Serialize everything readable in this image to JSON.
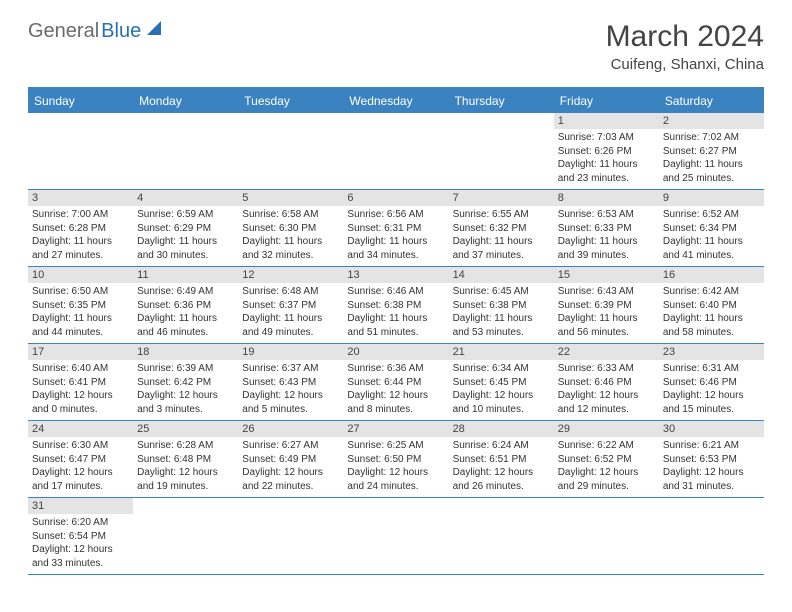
{
  "logo": {
    "part1": "General",
    "part2": "Blue"
  },
  "title": "March 2024",
  "location": "Cuifeng, Shanxi, China",
  "colors": {
    "header_bg": "#3b83c0",
    "header_text": "#ffffff",
    "stripe": "#e4e4e4",
    "border": "#3b83c0",
    "text": "#333333",
    "logo_gray": "#6b6b6b",
    "logo_blue": "#2a6fb5"
  },
  "day_labels": [
    "Sunday",
    "Monday",
    "Tuesday",
    "Wednesday",
    "Thursday",
    "Friday",
    "Saturday"
  ],
  "weeks": [
    {
      "nums": [
        "",
        "",
        "",
        "",
        "",
        "1",
        "2"
      ],
      "cells": [
        null,
        null,
        null,
        null,
        null,
        {
          "sunrise": "7:03 AM",
          "sunset": "6:26 PM",
          "daylight": "11 hours and 23 minutes."
        },
        {
          "sunrise": "7:02 AM",
          "sunset": "6:27 PM",
          "daylight": "11 hours and 25 minutes."
        }
      ]
    },
    {
      "nums": [
        "3",
        "4",
        "5",
        "6",
        "7",
        "8",
        "9"
      ],
      "cells": [
        {
          "sunrise": "7:00 AM",
          "sunset": "6:28 PM",
          "daylight": "11 hours and 27 minutes."
        },
        {
          "sunrise": "6:59 AM",
          "sunset": "6:29 PM",
          "daylight": "11 hours and 30 minutes."
        },
        {
          "sunrise": "6:58 AM",
          "sunset": "6:30 PM",
          "daylight": "11 hours and 32 minutes."
        },
        {
          "sunrise": "6:56 AM",
          "sunset": "6:31 PM",
          "daylight": "11 hours and 34 minutes."
        },
        {
          "sunrise": "6:55 AM",
          "sunset": "6:32 PM",
          "daylight": "11 hours and 37 minutes."
        },
        {
          "sunrise": "6:53 AM",
          "sunset": "6:33 PM",
          "daylight": "11 hours and 39 minutes."
        },
        {
          "sunrise": "6:52 AM",
          "sunset": "6:34 PM",
          "daylight": "11 hours and 41 minutes."
        }
      ]
    },
    {
      "nums": [
        "10",
        "11",
        "12",
        "13",
        "14",
        "15",
        "16"
      ],
      "cells": [
        {
          "sunrise": "6:50 AM",
          "sunset": "6:35 PM",
          "daylight": "11 hours and 44 minutes."
        },
        {
          "sunrise": "6:49 AM",
          "sunset": "6:36 PM",
          "daylight": "11 hours and 46 minutes."
        },
        {
          "sunrise": "6:48 AM",
          "sunset": "6:37 PM",
          "daylight": "11 hours and 49 minutes."
        },
        {
          "sunrise": "6:46 AM",
          "sunset": "6:38 PM",
          "daylight": "11 hours and 51 minutes."
        },
        {
          "sunrise": "6:45 AM",
          "sunset": "6:38 PM",
          "daylight": "11 hours and 53 minutes."
        },
        {
          "sunrise": "6:43 AM",
          "sunset": "6:39 PM",
          "daylight": "11 hours and 56 minutes."
        },
        {
          "sunrise": "6:42 AM",
          "sunset": "6:40 PM",
          "daylight": "11 hours and 58 minutes."
        }
      ]
    },
    {
      "nums": [
        "17",
        "18",
        "19",
        "20",
        "21",
        "22",
        "23"
      ],
      "cells": [
        {
          "sunrise": "6:40 AM",
          "sunset": "6:41 PM",
          "daylight": "12 hours and 0 minutes."
        },
        {
          "sunrise": "6:39 AM",
          "sunset": "6:42 PM",
          "daylight": "12 hours and 3 minutes."
        },
        {
          "sunrise": "6:37 AM",
          "sunset": "6:43 PM",
          "daylight": "12 hours and 5 minutes."
        },
        {
          "sunrise": "6:36 AM",
          "sunset": "6:44 PM",
          "daylight": "12 hours and 8 minutes."
        },
        {
          "sunrise": "6:34 AM",
          "sunset": "6:45 PM",
          "daylight": "12 hours and 10 minutes."
        },
        {
          "sunrise": "6:33 AM",
          "sunset": "6:46 PM",
          "daylight": "12 hours and 12 minutes."
        },
        {
          "sunrise": "6:31 AM",
          "sunset": "6:46 PM",
          "daylight": "12 hours and 15 minutes."
        }
      ]
    },
    {
      "nums": [
        "24",
        "25",
        "26",
        "27",
        "28",
        "29",
        "30"
      ],
      "cells": [
        {
          "sunrise": "6:30 AM",
          "sunset": "6:47 PM",
          "daylight": "12 hours and 17 minutes."
        },
        {
          "sunrise": "6:28 AM",
          "sunset": "6:48 PM",
          "daylight": "12 hours and 19 minutes."
        },
        {
          "sunrise": "6:27 AM",
          "sunset": "6:49 PM",
          "daylight": "12 hours and 22 minutes."
        },
        {
          "sunrise": "6:25 AM",
          "sunset": "6:50 PM",
          "daylight": "12 hours and 24 minutes."
        },
        {
          "sunrise": "6:24 AM",
          "sunset": "6:51 PM",
          "daylight": "12 hours and 26 minutes."
        },
        {
          "sunrise": "6:22 AM",
          "sunset": "6:52 PM",
          "daylight": "12 hours and 29 minutes."
        },
        {
          "sunrise": "6:21 AM",
          "sunset": "6:53 PM",
          "daylight": "12 hours and 31 minutes."
        }
      ]
    },
    {
      "nums": [
        "31",
        "",
        "",
        "",
        "",
        "",
        ""
      ],
      "cells": [
        {
          "sunrise": "6:20 AM",
          "sunset": "6:54 PM",
          "daylight": "12 hours and 33 minutes."
        },
        null,
        null,
        null,
        null,
        null,
        null
      ]
    }
  ],
  "labels": {
    "sunrise": "Sunrise: ",
    "sunset": "Sunset: ",
    "daylight": "Daylight: "
  }
}
